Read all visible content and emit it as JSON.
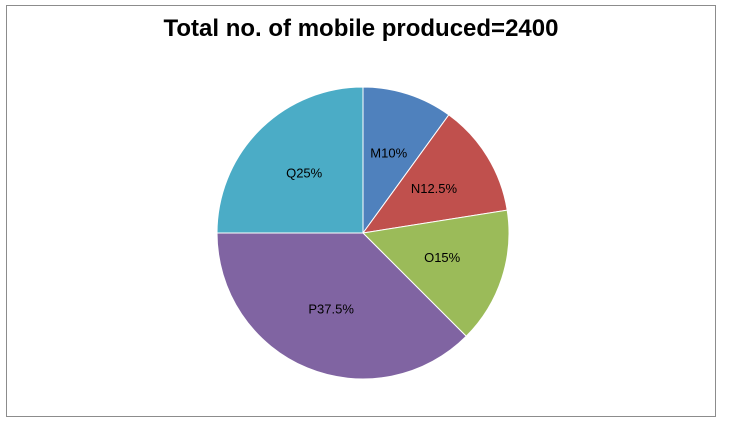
{
  "chart_data": {
    "type": "pie",
    "title": "Total no. of mobile produced=2400",
    "start_angle_deg": 0,
    "direction": "clockwise",
    "slices": [
      {
        "label": "M10%",
        "value": 10,
        "color": "#4f81bd"
      },
      {
        "label": "N12.5%",
        "value": 12.5,
        "color": "#c0504d"
      },
      {
        "label": "O15%",
        "value": 15,
        "color": "#9bbb59"
      },
      {
        "label": "P37.5%",
        "value": 37.5,
        "color": "#8064a2"
      },
      {
        "label": "Q25%",
        "value": 25,
        "color": "#4bacc6"
      }
    ]
  }
}
